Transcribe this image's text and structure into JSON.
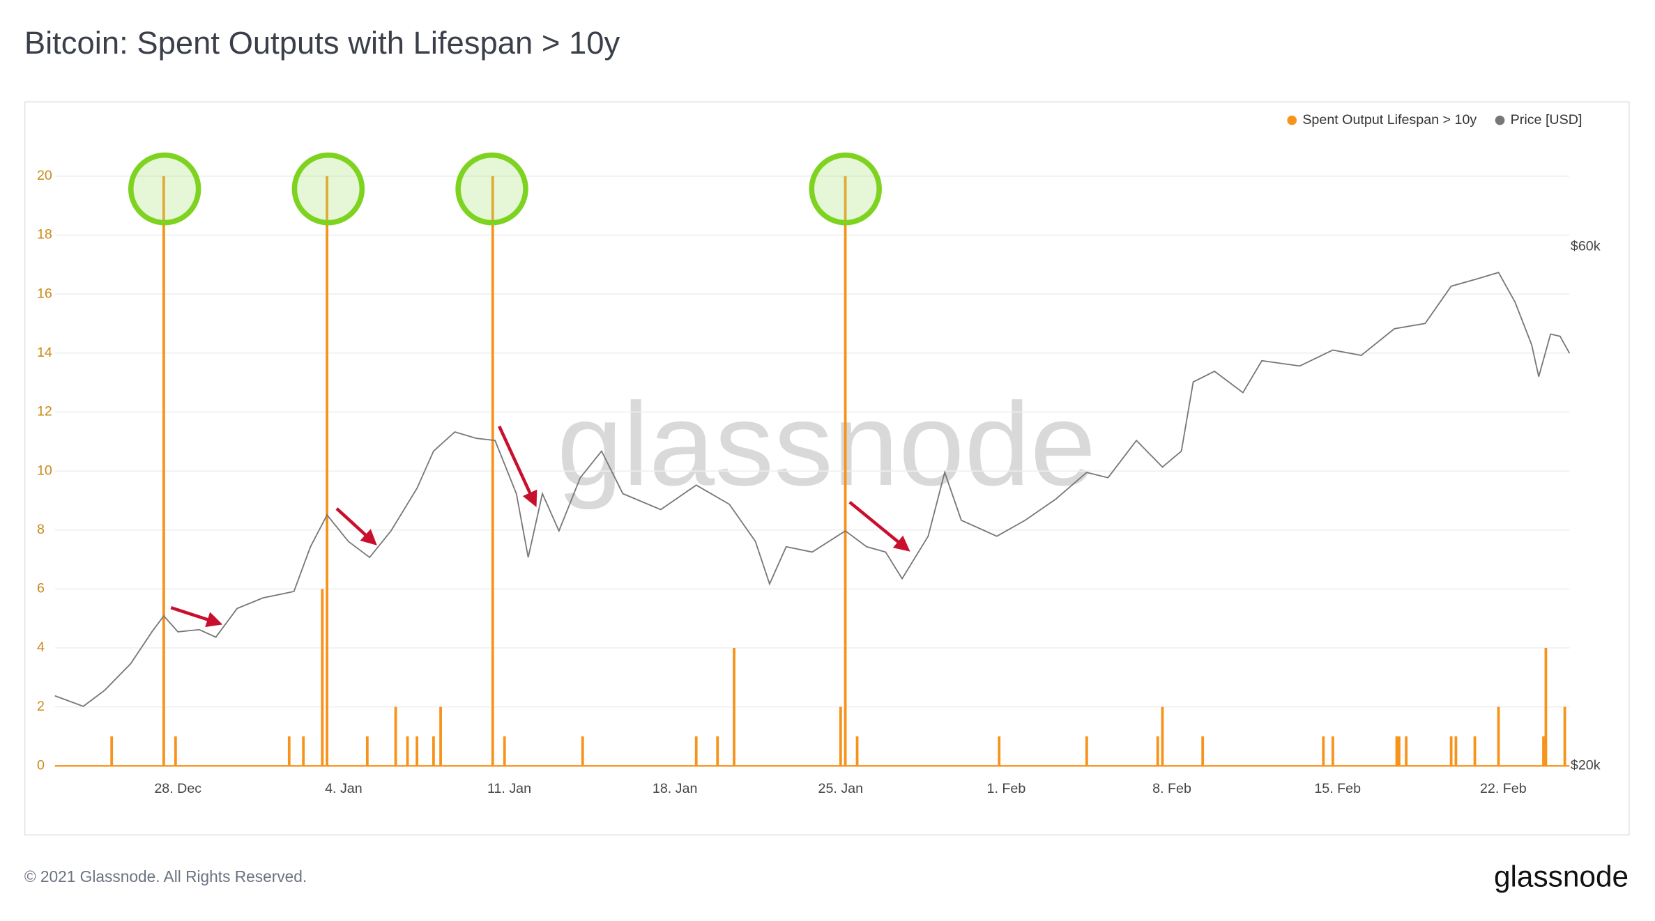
{
  "chart_data": {
    "type": "bar-line",
    "title": "Bitcoin: Spent Outputs with Lifespan > 10y",
    "watermark": "glassnode",
    "footer": "© 2021 Glassnode. All Rights Reserved.",
    "logo": "glassnode",
    "xlim": [
      -5.2,
      58.8
    ],
    "xticks": [
      {
        "value": 0,
        "label": "28. Dec"
      },
      {
        "value": 7,
        "label": "4. Jan"
      },
      {
        "value": 14,
        "label": "11. Jan"
      },
      {
        "value": 21,
        "label": "18. Jan"
      },
      {
        "value": 28,
        "label": "25. Jan"
      },
      {
        "value": 35,
        "label": "1. Feb"
      },
      {
        "value": 42,
        "label": "8. Feb"
      },
      {
        "value": 49,
        "label": "15. Feb"
      },
      {
        "value": 56,
        "label": "22. Feb"
      }
    ],
    "ylim": [
      0,
      22
    ],
    "yticks": [
      0,
      2,
      4,
      6,
      8,
      10,
      12,
      14,
      16,
      18,
      20
    ],
    "y2lim": [
      20000,
      70000
    ],
    "y2ticks": [
      {
        "value": 20000,
        "label": "$20k"
      },
      {
        "value": 60000,
        "label": "$60k"
      }
    ],
    "grid": true,
    "legend": "top-right",
    "series": [
      {
        "name": "Spent Output Lifespan > 10y",
        "type": "bar",
        "color": "#f7931a",
        "x": [
          -2.8,
          -0.6,
          -0.1,
          4.7,
          5.3,
          6.1,
          6.3,
          8.0,
          9.2,
          9.7,
          10.1,
          10.8,
          11.1,
          13.3,
          13.8,
          17.1,
          21.9,
          22.8,
          23.5,
          28.0,
          28.2,
          28.7,
          34.7,
          38.4,
          41.4,
          41.6,
          43.3,
          48.4,
          48.8,
          51.5,
          51.6,
          51.9,
          53.8,
          54.0,
          54.8,
          55.8,
          57.7,
          57.8,
          58.6
        ],
        "values": [
          1,
          20,
          1,
          1,
          1,
          6,
          20,
          1,
          2,
          1,
          1,
          1,
          2,
          20,
          1,
          1,
          1,
          1,
          4,
          2,
          20,
          1,
          1,
          1,
          1,
          2,
          1,
          1,
          1,
          1,
          1,
          1,
          1,
          1,
          1,
          2,
          1,
          4,
          2
        ]
      },
      {
        "name": "Price [USD]",
        "type": "line",
        "color": "#777777",
        "axis": "y2",
        "x": [
          -5.2,
          -4.0,
          -3.1,
          -2.0,
          -1.1,
          -0.6,
          0,
          0.9,
          1.6,
          2.5,
          3.6,
          4.9,
          5.6,
          6.3,
          7.2,
          8.1,
          9.0,
          10.1,
          10.8,
          11.7,
          12.6,
          13.4,
          14.3,
          14.8,
          15.4,
          16.1,
          17.0,
          17.9,
          18.8,
          20.4,
          21.9,
          23.3,
          24.4,
          25.0,
          25.7,
          26.8,
          28.2,
          29.1,
          29.9,
          30.6,
          31.7,
          32.4,
          33.1,
          34.6,
          35.8,
          37.1,
          38.4,
          39.3,
          40.5,
          41.6,
          42.4,
          42.9,
          43.8,
          45.0,
          45.8,
          47.4,
          48.8,
          50.0,
          51.4,
          52.7,
          53.8,
          54.9,
          55.8,
          56.5,
          57.2,
          57.5,
          58.0,
          58.4,
          58.8
        ],
        "values": [
          25400,
          24590,
          25820,
          27870,
          30330,
          31560,
          30330,
          30500,
          29920,
          32130,
          32950,
          33440,
          36890,
          39340,
          37300,
          36070,
          38110,
          41390,
          44260,
          45740,
          45250,
          45080,
          40980,
          36070,
          40980,
          38110,
          42210,
          44260,
          40980,
          39750,
          41640,
          40160,
          37300,
          34020,
          36890,
          36480,
          38110,
          36890,
          36480,
          34430,
          37700,
          42620,
          38930,
          37700,
          38930,
          40570,
          42620,
          42210,
          45080,
          43030,
          44260,
          49590,
          50410,
          48770,
          51230,
          50820,
          52050,
          51640,
          53690,
          54100,
          56970,
          57540,
          58030,
          55740,
          52460,
          50000,
          53280,
          53110,
          51800
        ]
      }
    ]
  }
}
